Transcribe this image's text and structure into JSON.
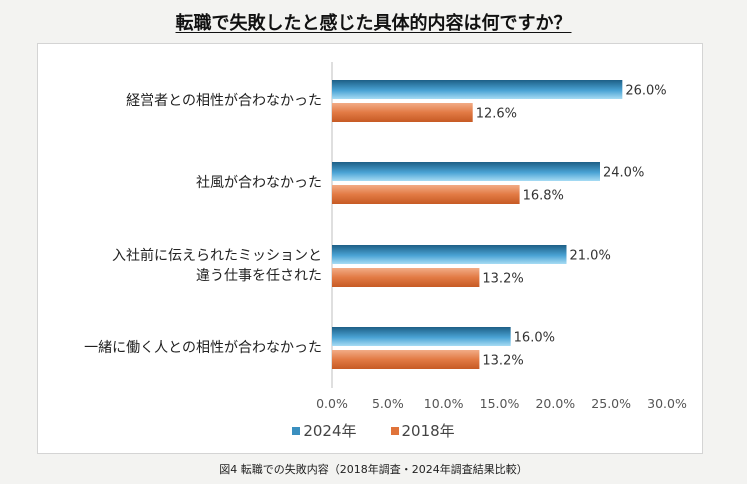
{
  "title": "転職で失敗したと感じた具体的内容は何ですか？",
  "caption": "図4 転職での失敗内容（2018年調査・2024年調査結果比較）",
  "colors": {
    "s2024": "#3a8fbf",
    "s2018": "#e0733a"
  },
  "chart_data": {
    "type": "bar",
    "orientation": "horizontal",
    "title": "転職で失敗したと感じた具体的内容は何ですか？",
    "categories": [
      [
        "経営者との相性が合わなかった"
      ],
      [
        "社風が合わなかった"
      ],
      [
        "入社前に伝えられたミッションと",
        "違う仕事を任された"
      ],
      [
        "一緒に働く人との相性が合わなかった"
      ]
    ],
    "series": [
      {
        "name": "2024年",
        "values": [
          26.0,
          24.0,
          21.0,
          16.0
        ],
        "labels": [
          "26.0%",
          "24.0%",
          "21.0%",
          "16.0%"
        ]
      },
      {
        "name": "2018年",
        "values": [
          12.6,
          16.8,
          13.2,
          13.2
        ],
        "labels": [
          "12.6%",
          "16.8%",
          "13.2%",
          "13.2%"
        ]
      }
    ],
    "xlim": [
      0,
      30
    ],
    "xticks": [
      "0.0%",
      "5.0%",
      "10.0%",
      "15.0%",
      "20.0%",
      "25.0%",
      "30.0%"
    ],
    "xlabel": "",
    "ylabel": "",
    "legend_position": "bottom-center"
  }
}
